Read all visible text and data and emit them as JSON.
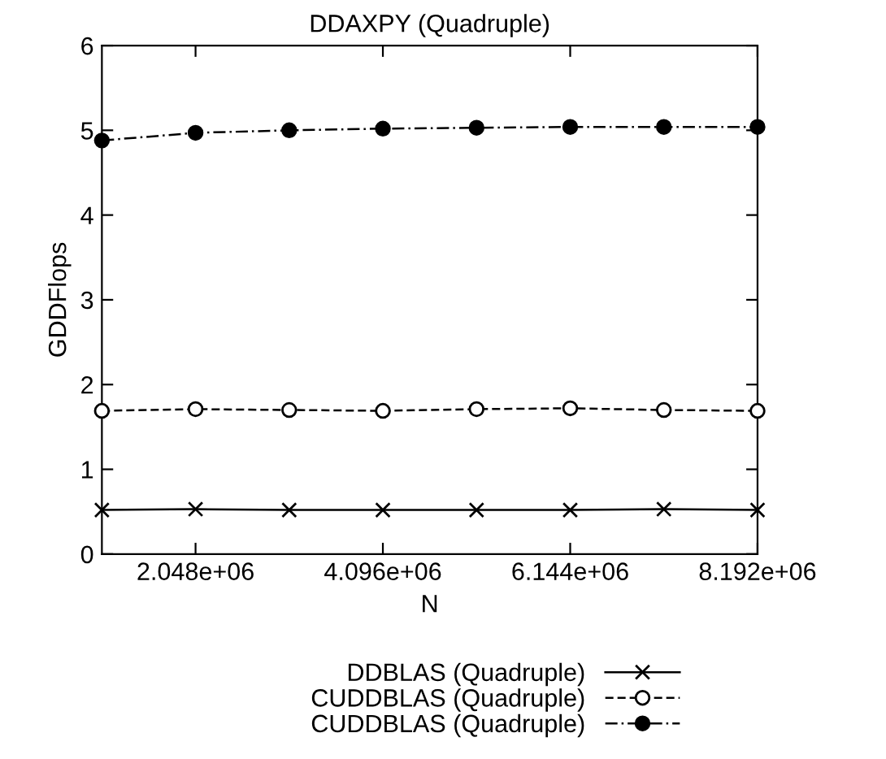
{
  "chart_data": {
    "type": "line",
    "title": "DDAXPY (Quadruple)",
    "xlabel": "N",
    "ylabel": "GDDFlops",
    "x": [
      1024000,
      2048000,
      3072000,
      4096000,
      5120000,
      6144000,
      7168000,
      8192000
    ],
    "xlim": [
      1024000,
      8192000
    ],
    "xticks": [
      {
        "value": 2048000,
        "label": "2.048e+06"
      },
      {
        "value": 4096000,
        "label": "4.096e+06"
      },
      {
        "value": 6144000,
        "label": "6.144e+06"
      },
      {
        "value": 8192000,
        "label": "8.192e+06"
      }
    ],
    "ylim": [
      0,
      6
    ],
    "yticks": [
      0,
      1,
      2,
      3,
      4,
      5,
      6
    ],
    "grid": false,
    "legend": "bottom",
    "series": [
      {
        "name": "DDBLAS (Quadruple)",
        "color": "#000000",
        "marker": "cross",
        "line_style": "solid",
        "values": [
          0.52,
          0.53,
          0.52,
          0.52,
          0.52,
          0.52,
          0.53,
          0.52
        ]
      },
      {
        "name": "CUDDBLAS (Quadruple)",
        "color": "#000000",
        "marker": "circle_open",
        "line_style": "dashed",
        "values": [
          1.69,
          1.71,
          1.7,
          1.69,
          1.71,
          1.72,
          1.7,
          1.69
        ]
      },
      {
        "name": "CUDDBLAS (Quadruple)",
        "color": "#000000",
        "marker": "circle",
        "line_style": "dashdot",
        "values": [
          4.88,
          4.97,
          5.0,
          5.02,
          5.03,
          5.04,
          5.04,
          5.04
        ]
      }
    ]
  }
}
